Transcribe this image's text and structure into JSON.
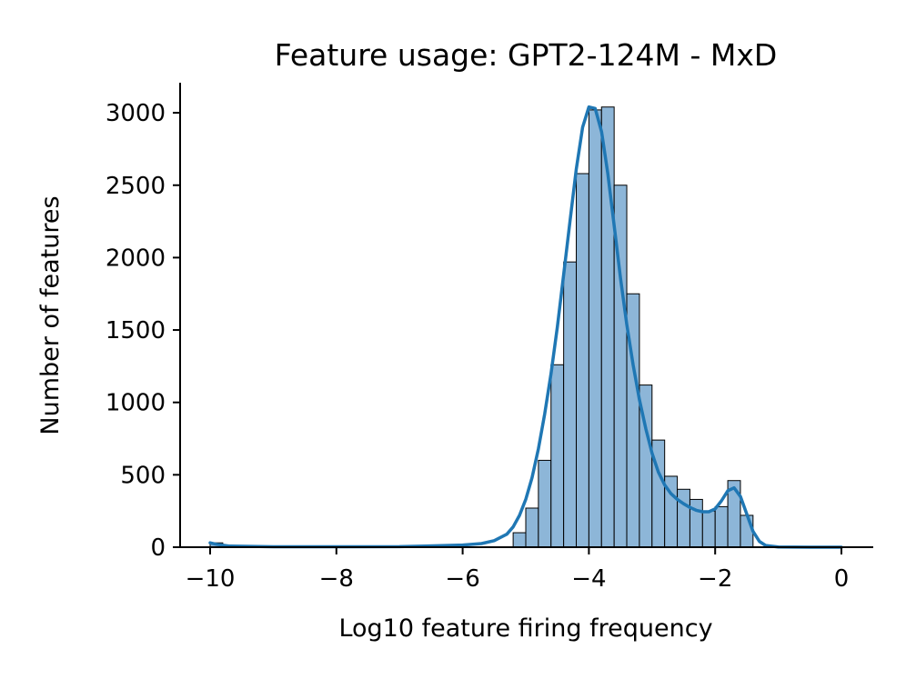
{
  "chart_data": {
    "type": "histogram",
    "title": "Feature usage: GPT2-124M - MxD",
    "xlabel": "Log10 feature firing frequency",
    "ylabel": "Number of features",
    "xlim": [
      -10.5,
      0.5
    ],
    "ylim": [
      0,
      3200
    ],
    "xticks": [
      -10,
      -8,
      -6,
      -4,
      -2,
      0
    ],
    "xtick_labels": [
      "−10",
      "−8",
      "−6",
      "−4",
      "−2",
      "0"
    ],
    "yticks": [
      0,
      500,
      1000,
      1500,
      2000,
      2500,
      3000
    ],
    "ytick_labels": [
      "0",
      "500",
      "1000",
      "1500",
      "2000",
      "2500",
      "3000"
    ],
    "bin_width": 0.2,
    "bins": [
      {
        "x0": -10.0,
        "count": 30
      },
      {
        "x0": -5.2,
        "count": 100
      },
      {
        "x0": -5.0,
        "count": 270
      },
      {
        "x0": -4.8,
        "count": 600
      },
      {
        "x0": -4.6,
        "count": 1260
      },
      {
        "x0": -4.4,
        "count": 1970
      },
      {
        "x0": -4.2,
        "count": 2580
      },
      {
        "x0": -4.0,
        "count": 3020
      },
      {
        "x0": -3.8,
        "count": 3040
      },
      {
        "x0": -3.6,
        "count": 2500
      },
      {
        "x0": -3.4,
        "count": 1750
      },
      {
        "x0": -3.2,
        "count": 1120
      },
      {
        "x0": -3.0,
        "count": 740
      },
      {
        "x0": -2.8,
        "count": 490
      },
      {
        "x0": -2.6,
        "count": 400
      },
      {
        "x0": -2.4,
        "count": 330
      },
      {
        "x0": -2.2,
        "count": 250
      },
      {
        "x0": -2.0,
        "count": 280
      },
      {
        "x0": -1.8,
        "count": 460
      },
      {
        "x0": -1.6,
        "count": 220
      }
    ],
    "kde": {
      "x": [
        -10.0,
        -9.9,
        -9.7,
        -9.0,
        -8.0,
        -7.0,
        -6.6,
        -6.0,
        -5.7,
        -5.5,
        -5.3,
        -5.2,
        -5.1,
        -5.0,
        -4.9,
        -4.8,
        -4.7,
        -4.6,
        -4.5,
        -4.4,
        -4.3,
        -4.2,
        -4.1,
        -4.0,
        -3.9,
        -3.8,
        -3.7,
        -3.6,
        -3.5,
        -3.4,
        -3.3,
        -3.2,
        -3.1,
        -3.0,
        -2.9,
        -2.8,
        -2.7,
        -2.6,
        -2.5,
        -2.4,
        -2.3,
        -2.2,
        -2.1,
        -2.0,
        -1.9,
        -1.8,
        -1.7,
        -1.6,
        -1.5,
        -1.4,
        -1.3,
        -1.2,
        -1.0,
        -0.5,
        0.0
      ],
      "y": [
        30,
        20,
        8,
        3,
        3,
        4,
        8,
        15,
        25,
        45,
        90,
        140,
        220,
        330,
        480,
        680,
        920,
        1200,
        1520,
        1880,
        2250,
        2610,
        2900,
        3040,
        3030,
        2870,
        2580,
        2220,
        1860,
        1540,
        1260,
        1020,
        820,
        650,
        520,
        430,
        370,
        330,
        300,
        275,
        255,
        245,
        245,
        265,
        320,
        390,
        410,
        350,
        230,
        110,
        40,
        12,
        2,
        0,
        0
      ]
    }
  }
}
